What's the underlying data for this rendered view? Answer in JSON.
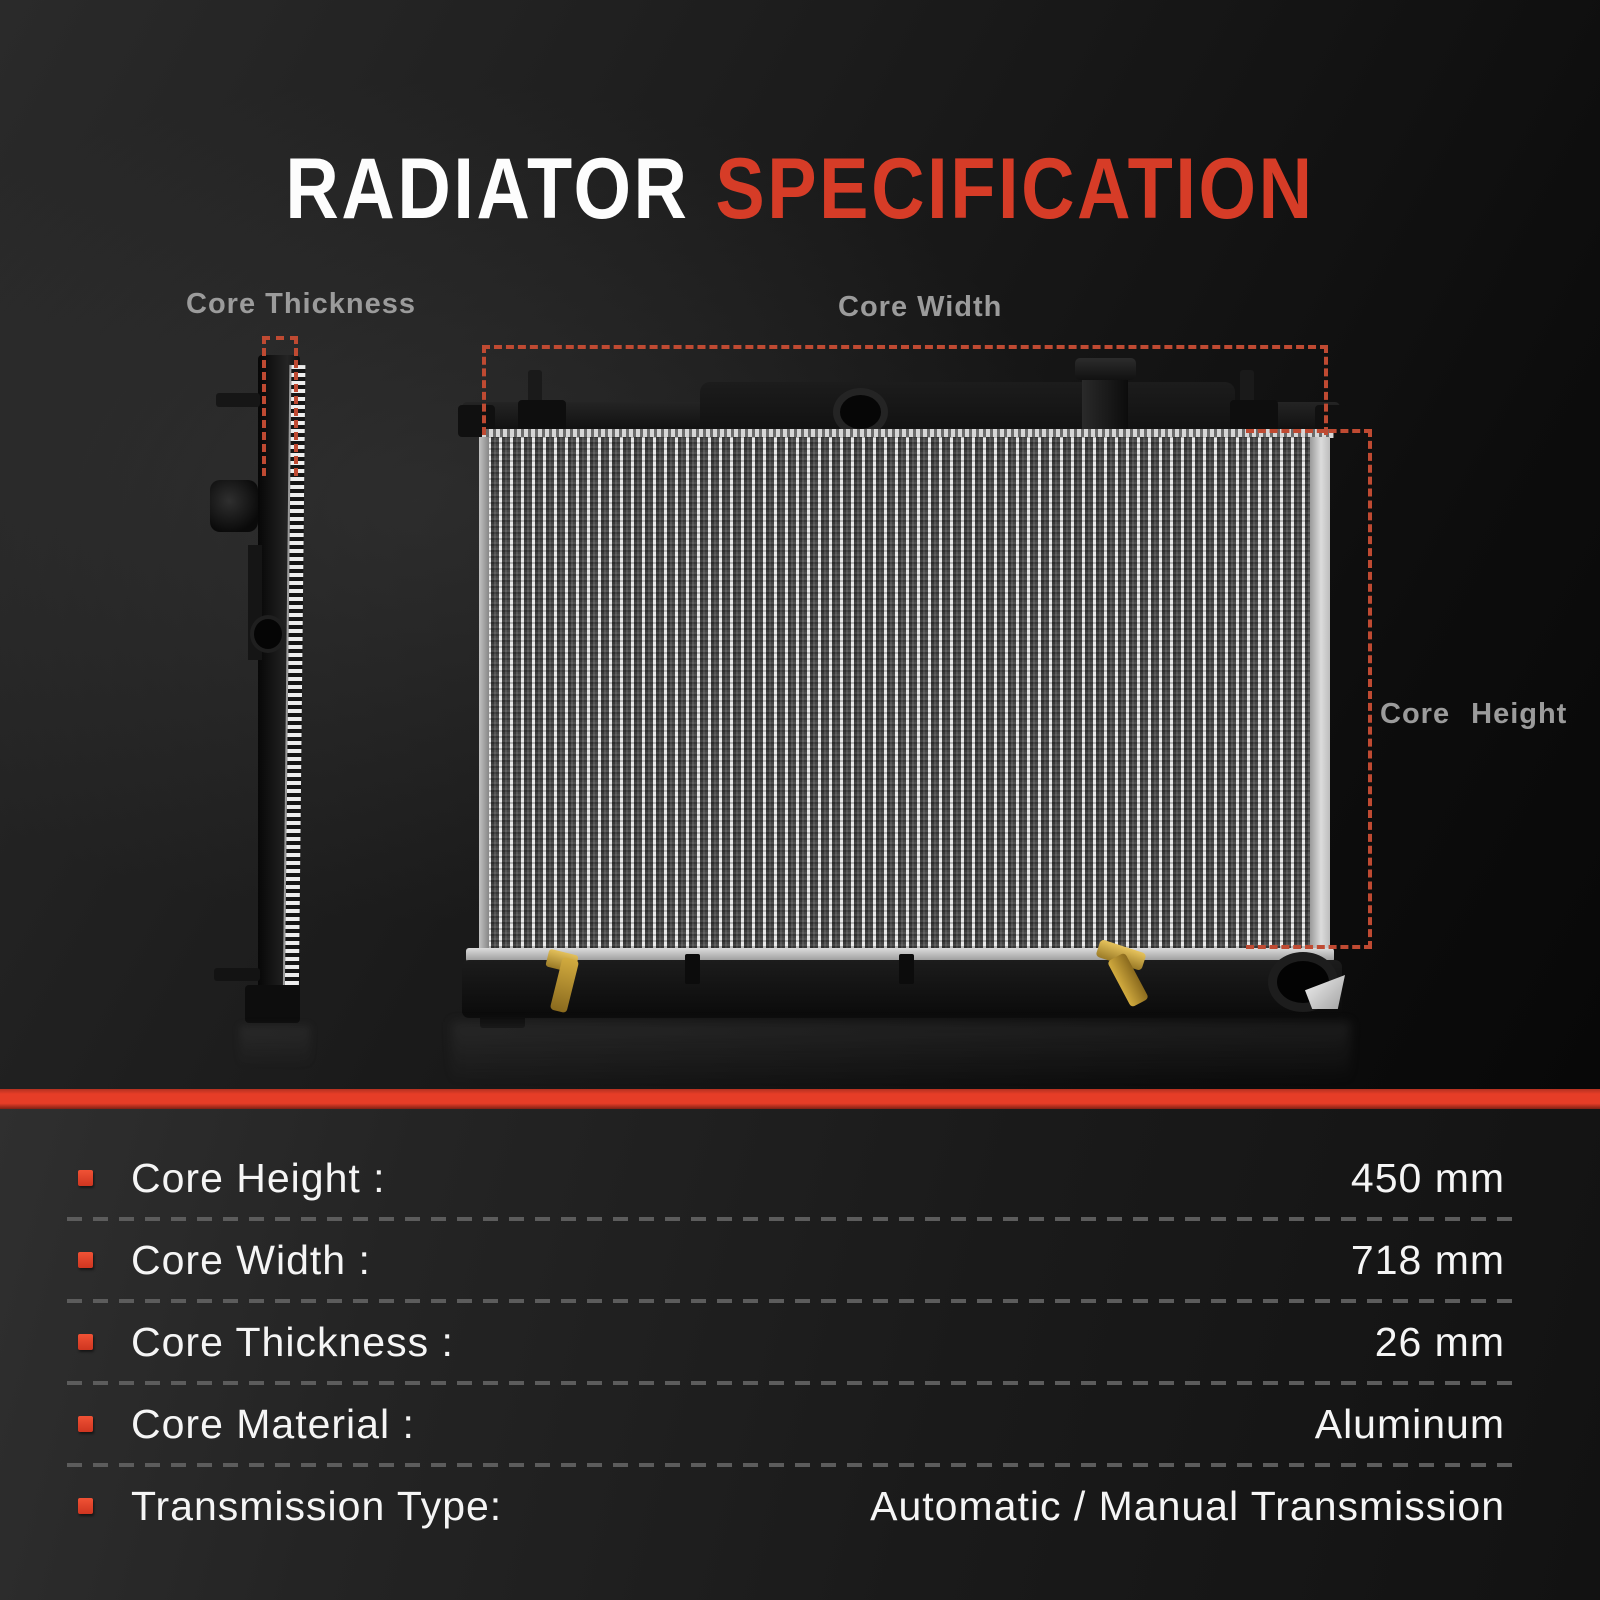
{
  "title": {
    "word_primary": "RADIATOR",
    "word_accent": "SPECIFICATION"
  },
  "diagram": {
    "core_thickness_label": "Core Thickness",
    "core_width_label": "Core Width",
    "core_height_label": "Core Height"
  },
  "specs": {
    "rows": [
      {
        "label": "Core Height :",
        "value": "450 mm"
      },
      {
        "label": "Core Width :",
        "value": "718 mm"
      },
      {
        "label": "Core Thickness :",
        "value": "26 mm"
      },
      {
        "label": "Core Material :",
        "value": "Aluminum"
      },
      {
        "label": "Transmission Type:",
        "value": "Automatic / Manual Transmission"
      }
    ]
  },
  "colors": {
    "accent_red": "#d63c27",
    "divider_bar": "#e63d27",
    "measure_dash": "#bf4a32"
  }
}
